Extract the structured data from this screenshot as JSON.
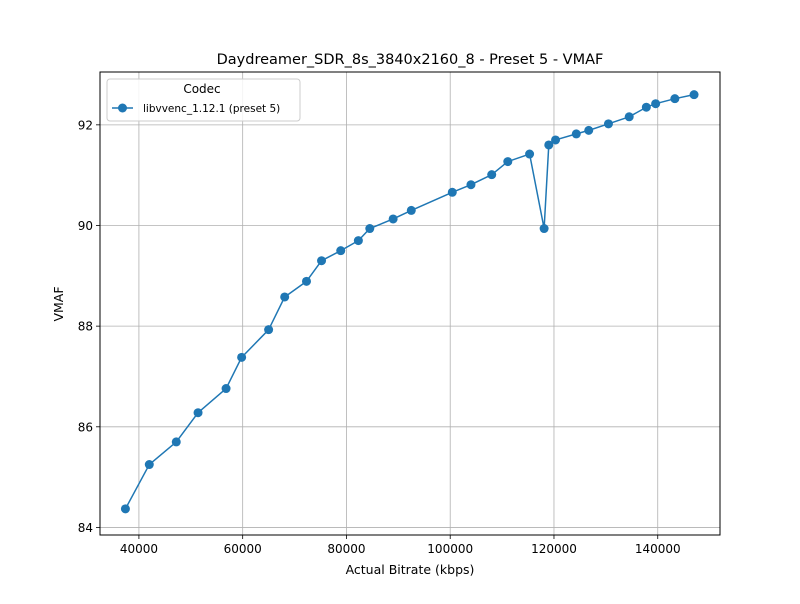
{
  "chart_data": {
    "type": "line",
    "title": "Daydreamer_SDR_8s_3840x2160_8 - Preset 5 - VMAF",
    "xlabel": "Actual Bitrate (kbps)",
    "ylabel": "VMAF",
    "xlim": [
      32500,
      152000
    ],
    "ylim": [
      83.85,
      93.05
    ],
    "xticks": [
      40000,
      60000,
      80000,
      100000,
      120000,
      140000
    ],
    "yticks": [
      84,
      86,
      88,
      90,
      92
    ],
    "grid": true,
    "legend": {
      "title": "Codec",
      "position": "top-left"
    },
    "series": [
      {
        "name": "libvvenc_1.12.1 (preset 5)",
        "color": "#1f77b4",
        "marker": "circle",
        "points": [
          [
            37400,
            84.37
          ],
          [
            42000,
            85.25
          ],
          [
            47200,
            85.7
          ],
          [
            51400,
            86.28
          ],
          [
            56800,
            86.76
          ],
          [
            59800,
            87.38
          ],
          [
            65000,
            87.93
          ],
          [
            68100,
            88.58
          ],
          [
            72300,
            88.89
          ],
          [
            75200,
            89.3
          ],
          [
            78900,
            89.5
          ],
          [
            82300,
            89.7
          ],
          [
            84500,
            89.94
          ],
          [
            89000,
            90.13
          ],
          [
            92500,
            90.3
          ],
          [
            100400,
            90.66
          ],
          [
            104000,
            90.81
          ],
          [
            108000,
            91.01
          ],
          [
            111100,
            91.27
          ],
          [
            115300,
            91.42
          ],
          [
            118100,
            89.94
          ],
          [
            119000,
            91.6
          ],
          [
            120300,
            91.7
          ],
          [
            124300,
            91.82
          ],
          [
            126700,
            91.89
          ],
          [
            130500,
            92.02
          ],
          [
            134500,
            92.16
          ],
          [
            137800,
            92.35
          ],
          [
            139600,
            92.42
          ],
          [
            143300,
            92.52
          ],
          [
            147000,
            92.6
          ]
        ]
      }
    ]
  }
}
